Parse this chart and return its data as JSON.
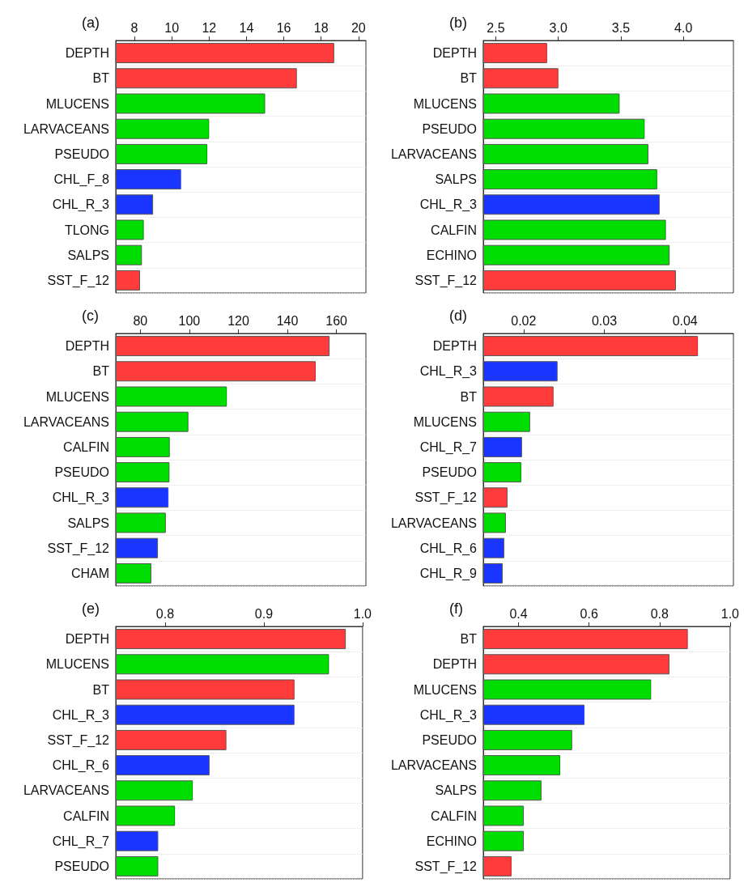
{
  "chart_data": [
    {
      "type": "bar",
      "orientation": "horizontal",
      "title": "(a)",
      "grid": "y",
      "categories": [
        "DEPTH",
        "BT",
        "MLUCENS",
        "LARVACEANS",
        "PSEUDO",
        "CHL_F_8",
        "CHL_R_3",
        "TLONG",
        "SALPS",
        "SST_F_12"
      ],
      "values": [
        18.7,
        16.7,
        15.0,
        12.0,
        11.9,
        10.5,
        9.0,
        8.5,
        8.4,
        8.3
      ],
      "colors": [
        "#ff3b3b",
        "#ff3b3b",
        "#00dd00",
        "#00dd00",
        "#00dd00",
        "#1a35ff",
        "#1a35ff",
        "#00dd00",
        "#00dd00",
        "#ff3b3b"
      ],
      "xlim": [
        7,
        20.4
      ],
      "xticks": [
        8,
        10,
        12,
        14,
        16,
        18,
        20
      ]
    },
    {
      "type": "bar",
      "orientation": "horizontal",
      "title": "(b)",
      "grid": "y",
      "categories": [
        "DEPTH",
        "BT",
        "MLUCENS",
        "PSEUDO",
        "LARVACEANS",
        "SALPS",
        "CHL_R_3",
        "CALFIN",
        "ECHINO",
        "SST_F_12"
      ],
      "values": [
        2.91,
        3.0,
        3.49,
        3.69,
        3.72,
        3.79,
        3.81,
        3.86,
        3.89,
        3.94
      ],
      "colors": [
        "#ff3b3b",
        "#ff3b3b",
        "#00dd00",
        "#00dd00",
        "#00dd00",
        "#00dd00",
        "#1a35ff",
        "#00dd00",
        "#00dd00",
        "#ff3b3b"
      ],
      "xlim": [
        2.4,
        4.4
      ],
      "xticks": [
        2.5,
        {
          "value": 3,
          "label": "3.0"
        },
        3.5,
        {
          "value": 4,
          "label": "4.0"
        }
      ]
    },
    {
      "type": "bar",
      "orientation": "horizontal",
      "title": "(c)",
      "grid": "y",
      "categories": [
        "DEPTH",
        "BT",
        "MLUCENS",
        "LARVACEANS",
        "CALFIN",
        "PSEUDO",
        "CHL_R_3",
        "SALPS",
        "SST_F_12",
        "CHAM"
      ],
      "values": [
        157.2,
        151.5,
        115.3,
        99.6,
        92.0,
        91.9,
        91.5,
        90.4,
        87.2,
        84.5
      ],
      "colors": [
        "#ff3b3b",
        "#ff3b3b",
        "#00dd00",
        "#00dd00",
        "#00dd00",
        "#00dd00",
        "#1a35ff",
        "#00dd00",
        "#1a35ff",
        "#00dd00"
      ],
      "xlim": [
        70,
        172
      ],
      "xticks": [
        80,
        100,
        120,
        140,
        160
      ]
    },
    {
      "type": "bar",
      "orientation": "horizontal",
      "title": "(d)",
      "grid": "y",
      "categories": [
        "DEPTH",
        "CHL_R_3",
        "BT",
        "MLUCENS",
        "CHL_R_7",
        "PSEUDO",
        "SST_F_12",
        "LARVACEANS",
        "CHL_R_6",
        "CHL_R_9"
      ],
      "values": [
        0.0416,
        0.0242,
        0.0237,
        0.0208,
        0.0198,
        0.0197,
        0.018,
        0.0178,
        0.0176,
        0.0174
      ],
      "colors": [
        "#ff3b3b",
        "#1a35ff",
        "#ff3b3b",
        "#00dd00",
        "#1a35ff",
        "#00dd00",
        "#ff3b3b",
        "#00dd00",
        "#1a35ff",
        "#1a35ff"
      ],
      "xlim": [
        0.015,
        0.046
      ],
      "xticks": [
        0.02,
        0.03,
        0.04
      ]
    },
    {
      "type": "bar",
      "orientation": "horizontal",
      "title": "(e)",
      "grid": "y",
      "categories": [
        "DEPTH",
        "MLUCENS",
        "BT",
        "CHL_R_3",
        "SST_F_12",
        "CHL_R_6",
        "LARVACEANS",
        "CALFIN",
        "CHL_R_7",
        "PSEUDO"
      ],
      "values": [
        0.983,
        0.966,
        0.931,
        0.931,
        0.862,
        0.845,
        0.828,
        0.81,
        0.793,
        0.793
      ],
      "colors": [
        "#ff3b3b",
        "#00dd00",
        "#ff3b3b",
        "#1a35ff",
        "#ff3b3b",
        "#1a35ff",
        "#00dd00",
        "#00dd00",
        "#1a35ff",
        "#00dd00"
      ],
      "xlim": [
        0.75,
        1.0
      ],
      "xticks": [
        0.8,
        0.9,
        {
          "value": 1,
          "label": "1.0"
        }
      ]
    },
    {
      "type": "bar",
      "orientation": "horizontal",
      "title": "(f)",
      "grid": "y",
      "categories": [
        "BT",
        "DEPTH",
        "MLUCENS",
        "CHL_R_3",
        "PSEUDO",
        "LARVACEANS",
        "SALPS",
        "CALFIN",
        "ECHINO",
        "SST_F_12"
      ],
      "values": [
        0.88,
        0.828,
        0.776,
        0.587,
        0.552,
        0.518,
        0.465,
        0.415,
        0.415,
        0.38
      ],
      "colors": [
        "#ff3b3b",
        "#ff3b3b",
        "#00dd00",
        "#1a35ff",
        "#00dd00",
        "#00dd00",
        "#00dd00",
        "#00dd00",
        "#00dd00",
        "#ff3b3b"
      ],
      "xlim": [
        0.3,
        1.0
      ],
      "xticks": [
        0.4,
        0.6,
        0.8,
        {
          "value": 1,
          "label": "1.0"
        }
      ]
    }
  ]
}
